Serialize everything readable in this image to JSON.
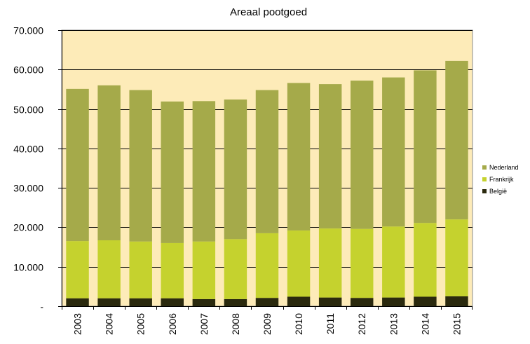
{
  "chart_data": {
    "type": "bar",
    "stacked": true,
    "title": "Areaal pootgoed",
    "xlabel": "",
    "ylabel": "",
    "ylim": [
      0,
      70000
    ],
    "yticks": [
      0,
      10000,
      20000,
      30000,
      40000,
      50000,
      60000,
      70000
    ],
    "ytick_labels": [
      "-",
      "10.000",
      "20.000",
      "30.000",
      "40.000",
      "50.000",
      "60.000",
      "70.000"
    ],
    "categories": [
      "2003",
      "2004",
      "2005",
      "2006",
      "2007",
      "2008",
      "2009",
      "2010",
      "2011",
      "2012",
      "2013",
      "2014",
      "2015"
    ],
    "series": [
      {
        "name": "België",
        "color": "#2b2a0e",
        "values": [
          2000,
          2000,
          2000,
          2000,
          1800,
          1800,
          2100,
          2400,
          2200,
          2100,
          2200,
          2400,
          2500
        ]
      },
      {
        "name": "Frankrijk",
        "color": "#c5d22e",
        "values": [
          14500,
          14700,
          14400,
          14000,
          14600,
          15200,
          16400,
          16800,
          17500,
          17500,
          18000,
          18700,
          19500
        ]
      },
      {
        "name": "Nederland",
        "color": "#a5aa4a",
        "values": [
          38600,
          39300,
          38400,
          35900,
          35600,
          35400,
          36300,
          37400,
          36600,
          37600,
          37800,
          38700,
          40200
        ]
      }
    ],
    "legend": {
      "placement": "right",
      "order": [
        "Nederland",
        "Frankrijk",
        "België"
      ]
    },
    "grid": true,
    "plot_background": "#fdebb8",
    "gridline_color": "#000000"
  }
}
